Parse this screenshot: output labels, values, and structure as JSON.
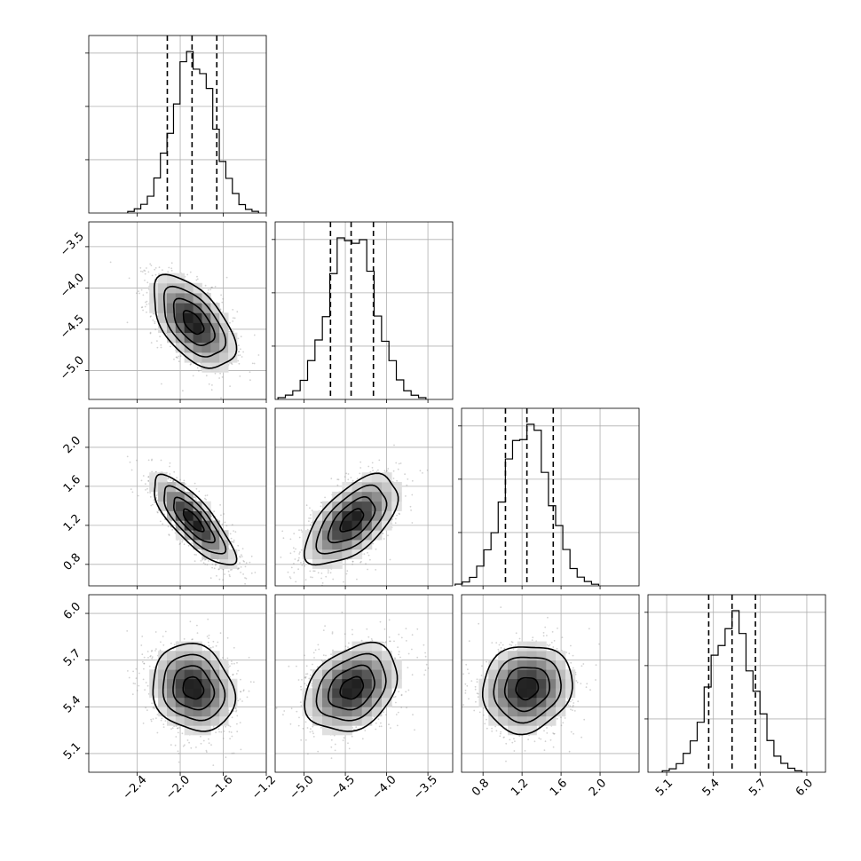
{
  "chart_data": {
    "type": "corner",
    "parameters": [
      {
        "mean": -1.88,
        "sd": 0.19,
        "range": [
          -2.85,
          -1.2
        ],
        "ticks": [
          -2.4,
          -2.0,
          -1.6,
          -1.2
        ],
        "tick_labels": [
          "−2.4",
          "−2.0",
          "−1.6",
          "−1.2"
        ],
        "quantiles": [
          -2.12,
          -1.89,
          -1.66
        ]
      },
      {
        "mean": -4.42,
        "sd": 0.28,
        "range": [
          -5.35,
          -3.2
        ],
        "ticks": [
          -5.0,
          -4.5,
          -4.0,
          -3.5
        ],
        "tick_labels": [
          "−5.0",
          "−4.5",
          "−4.0",
          "−3.5"
        ],
        "quantiles": [
          -4.68,
          -4.43,
          -4.16
        ]
      },
      {
        "mean": 1.25,
        "sd": 0.23,
        "range": [
          0.58,
          2.4
        ],
        "ticks": [
          0.8,
          1.2,
          1.6,
          2.0
        ],
        "tick_labels": [
          "0.8",
          "1.2",
          "1.6",
          "2.0"
        ],
        "quantiles": [
          1.03,
          1.25,
          1.52
        ]
      },
      {
        "mean": 5.52,
        "sd": 0.14,
        "range": [
          4.98,
          6.12
        ],
        "ticks": [
          5.1,
          5.4,
          5.7,
          6.0
        ],
        "tick_labels": [
          "5.1",
          "5.4",
          "5.7",
          "6.0"
        ],
        "quantiles": [
          5.37,
          5.52,
          5.67
        ]
      }
    ],
    "correlations": [
      [
        1.0,
        -0.55,
        -0.8,
        -0.15
      ],
      [
        -0.55,
        1.0,
        0.6,
        0.3
      ],
      [
        -0.8,
        0.6,
        1.0,
        0.1
      ],
      [
        -0.15,
        0.3,
        0.1,
        1.0
      ]
    ],
    "histogram_bins": 20,
    "contour_levels": [
      0.5,
      1.0,
      1.5,
      2.0
    ],
    "grid": true,
    "colors": {
      "points": "#7f7f7f",
      "lines": "#000000",
      "grid": "#b0b0b0"
    }
  }
}
